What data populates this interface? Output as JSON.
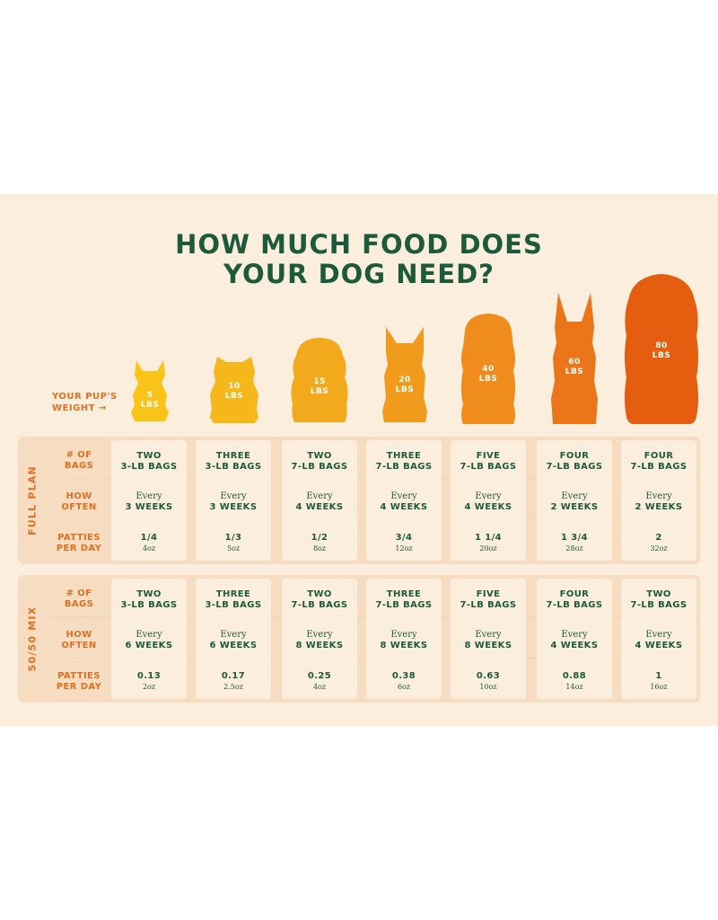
{
  "title": {
    "line1": "HOW MUCH FOOD DOES",
    "line2": "YOUR DOG NEED?"
  },
  "weight_label": {
    "line1": "YOUR PUP'S",
    "line2": "WEIGHT →"
  },
  "dogs": [
    {
      "w1": "5",
      "w2": "LBS",
      "color": "#f9c317"
    },
    {
      "w1": "10",
      "w2": "LBS",
      "color": "#f6b71a"
    },
    {
      "w1": "15",
      "w2": "LBS",
      "color": "#f3a91c"
    },
    {
      "w1": "20",
      "w2": "LBS",
      "color": "#f19b1d"
    },
    {
      "w1": "40",
      "w2": "LBS",
      "color": "#ef8c1c"
    },
    {
      "w1": "60",
      "w2": "LBS",
      "color": "#eb7519"
    },
    {
      "w1": "80",
      "w2": "LBS",
      "color": "#e55e0f"
    }
  ],
  "sections": [
    {
      "name": "FULL PLAN",
      "rows": [
        {
          "l1": "# OF",
          "l2": "BAGS"
        },
        {
          "l1": "HOW",
          "l2": "OFTEN"
        },
        {
          "l1": "PATTIES",
          "l2": "PER DAY"
        }
      ],
      "cols": [
        {
          "bags1": "TWO",
          "bags2": "3-LB BAGS",
          "ev": "Every",
          "freq": "3 WEEKS",
          "pat": "1/4",
          "oz": "4oz"
        },
        {
          "bags1": "THREE",
          "bags2": "3-LB BAGS",
          "ev": "Every",
          "freq": "3 WEEKS",
          "pat": "1/3",
          "oz": "5oz"
        },
        {
          "bags1": "TWO",
          "bags2": "7-LB BAGS",
          "ev": "Every",
          "freq": "4 WEEKS",
          "pat": "1/2",
          "oz": "8oz"
        },
        {
          "bags1": "THREE",
          "bags2": "7-LB BAGS",
          "ev": "Every",
          "freq": "4 WEEKS",
          "pat": "3/4",
          "oz": "12oz"
        },
        {
          "bags1": "FIVE",
          "bags2": "7-LB BAGS",
          "ev": "Every",
          "freq": "4 WEEKS",
          "pat": "1  1/4",
          "oz": "20oz"
        },
        {
          "bags1": "FOUR",
          "bags2": "7-LB BAGS",
          "ev": "Every",
          "freq": "2 WEEKS",
          "pat": "1  3/4",
          "oz": "28oz"
        },
        {
          "bags1": "FOUR",
          "bags2": "7-LB BAGS",
          "ev": "Every",
          "freq": "2 WEEKS",
          "pat": "2",
          "oz": "32oz"
        }
      ]
    },
    {
      "name": "50/50 MIX",
      "rows": [
        {
          "l1": "# OF",
          "l2": "BAGS"
        },
        {
          "l1": "HOW",
          "l2": "OFTEN"
        },
        {
          "l1": "PATTIES",
          "l2": "PER DAY"
        }
      ],
      "cols": [
        {
          "bags1": "TWO",
          "bags2": "3-LB BAGS",
          "ev": "Every",
          "freq": "6 WEEKS",
          "pat": "0.13",
          "oz": "2oz"
        },
        {
          "bags1": "THREE",
          "bags2": "3-LB BAGS",
          "ev": "Every",
          "freq": "6 WEEKS",
          "pat": "0.17",
          "oz": "2.5oz"
        },
        {
          "bags1": "TWO",
          "bags2": "7-LB BAGS",
          "ev": "Every",
          "freq": "8 WEEKS",
          "pat": "0.25",
          "oz": "4oz"
        },
        {
          "bags1": "THREE",
          "bags2": "7-LB BAGS",
          "ev": "Every",
          "freq": "8 WEEKS",
          "pat": "0.38",
          "oz": "6oz"
        },
        {
          "bags1": "FIVE",
          "bags2": "7-LB BAGS",
          "ev": "Every",
          "freq": "8 WEEKS",
          "pat": "0.63",
          "oz": "10oz"
        },
        {
          "bags1": "FOUR",
          "bags2": "7-LB BAGS",
          "ev": "Every",
          "freq": "4 WEEKS",
          "pat": "0.88",
          "oz": "14oz"
        },
        {
          "bags1": "TWO",
          "bags2": "7-LB BAGS",
          "ev": "Every",
          "freq": "4 WEEKS",
          "pat": "1",
          "oz": "16oz"
        }
      ]
    }
  ]
}
